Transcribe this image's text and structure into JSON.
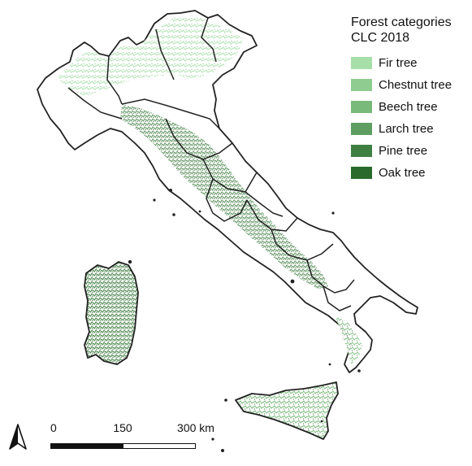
{
  "legend": {
    "title_line1": "Forest categories",
    "title_line2": "CLC 2018",
    "items": [
      {
        "label": "Fir tree",
        "color": "#a7dfa8"
      },
      {
        "label": "Chestnut tree",
        "color": "#8fcc90"
      },
      {
        "label": "Beech tree",
        "color": "#79b97a"
      },
      {
        "label": "Larch tree",
        "color": "#5f9e61"
      },
      {
        "label": "Pine tree",
        "color": "#3f7f42"
      },
      {
        "label": "Oak tree",
        "color": "#2a6a2d"
      }
    ]
  },
  "scale": {
    "labels": [
      "0",
      "150",
      "300 km"
    ]
  },
  "north_arrow": {
    "icon": "north-arrow-icon"
  },
  "map": {
    "boundary_color": "#222222",
    "forest_color_light": "#8fcc90",
    "forest_color_dark": "#2a6a2d"
  }
}
